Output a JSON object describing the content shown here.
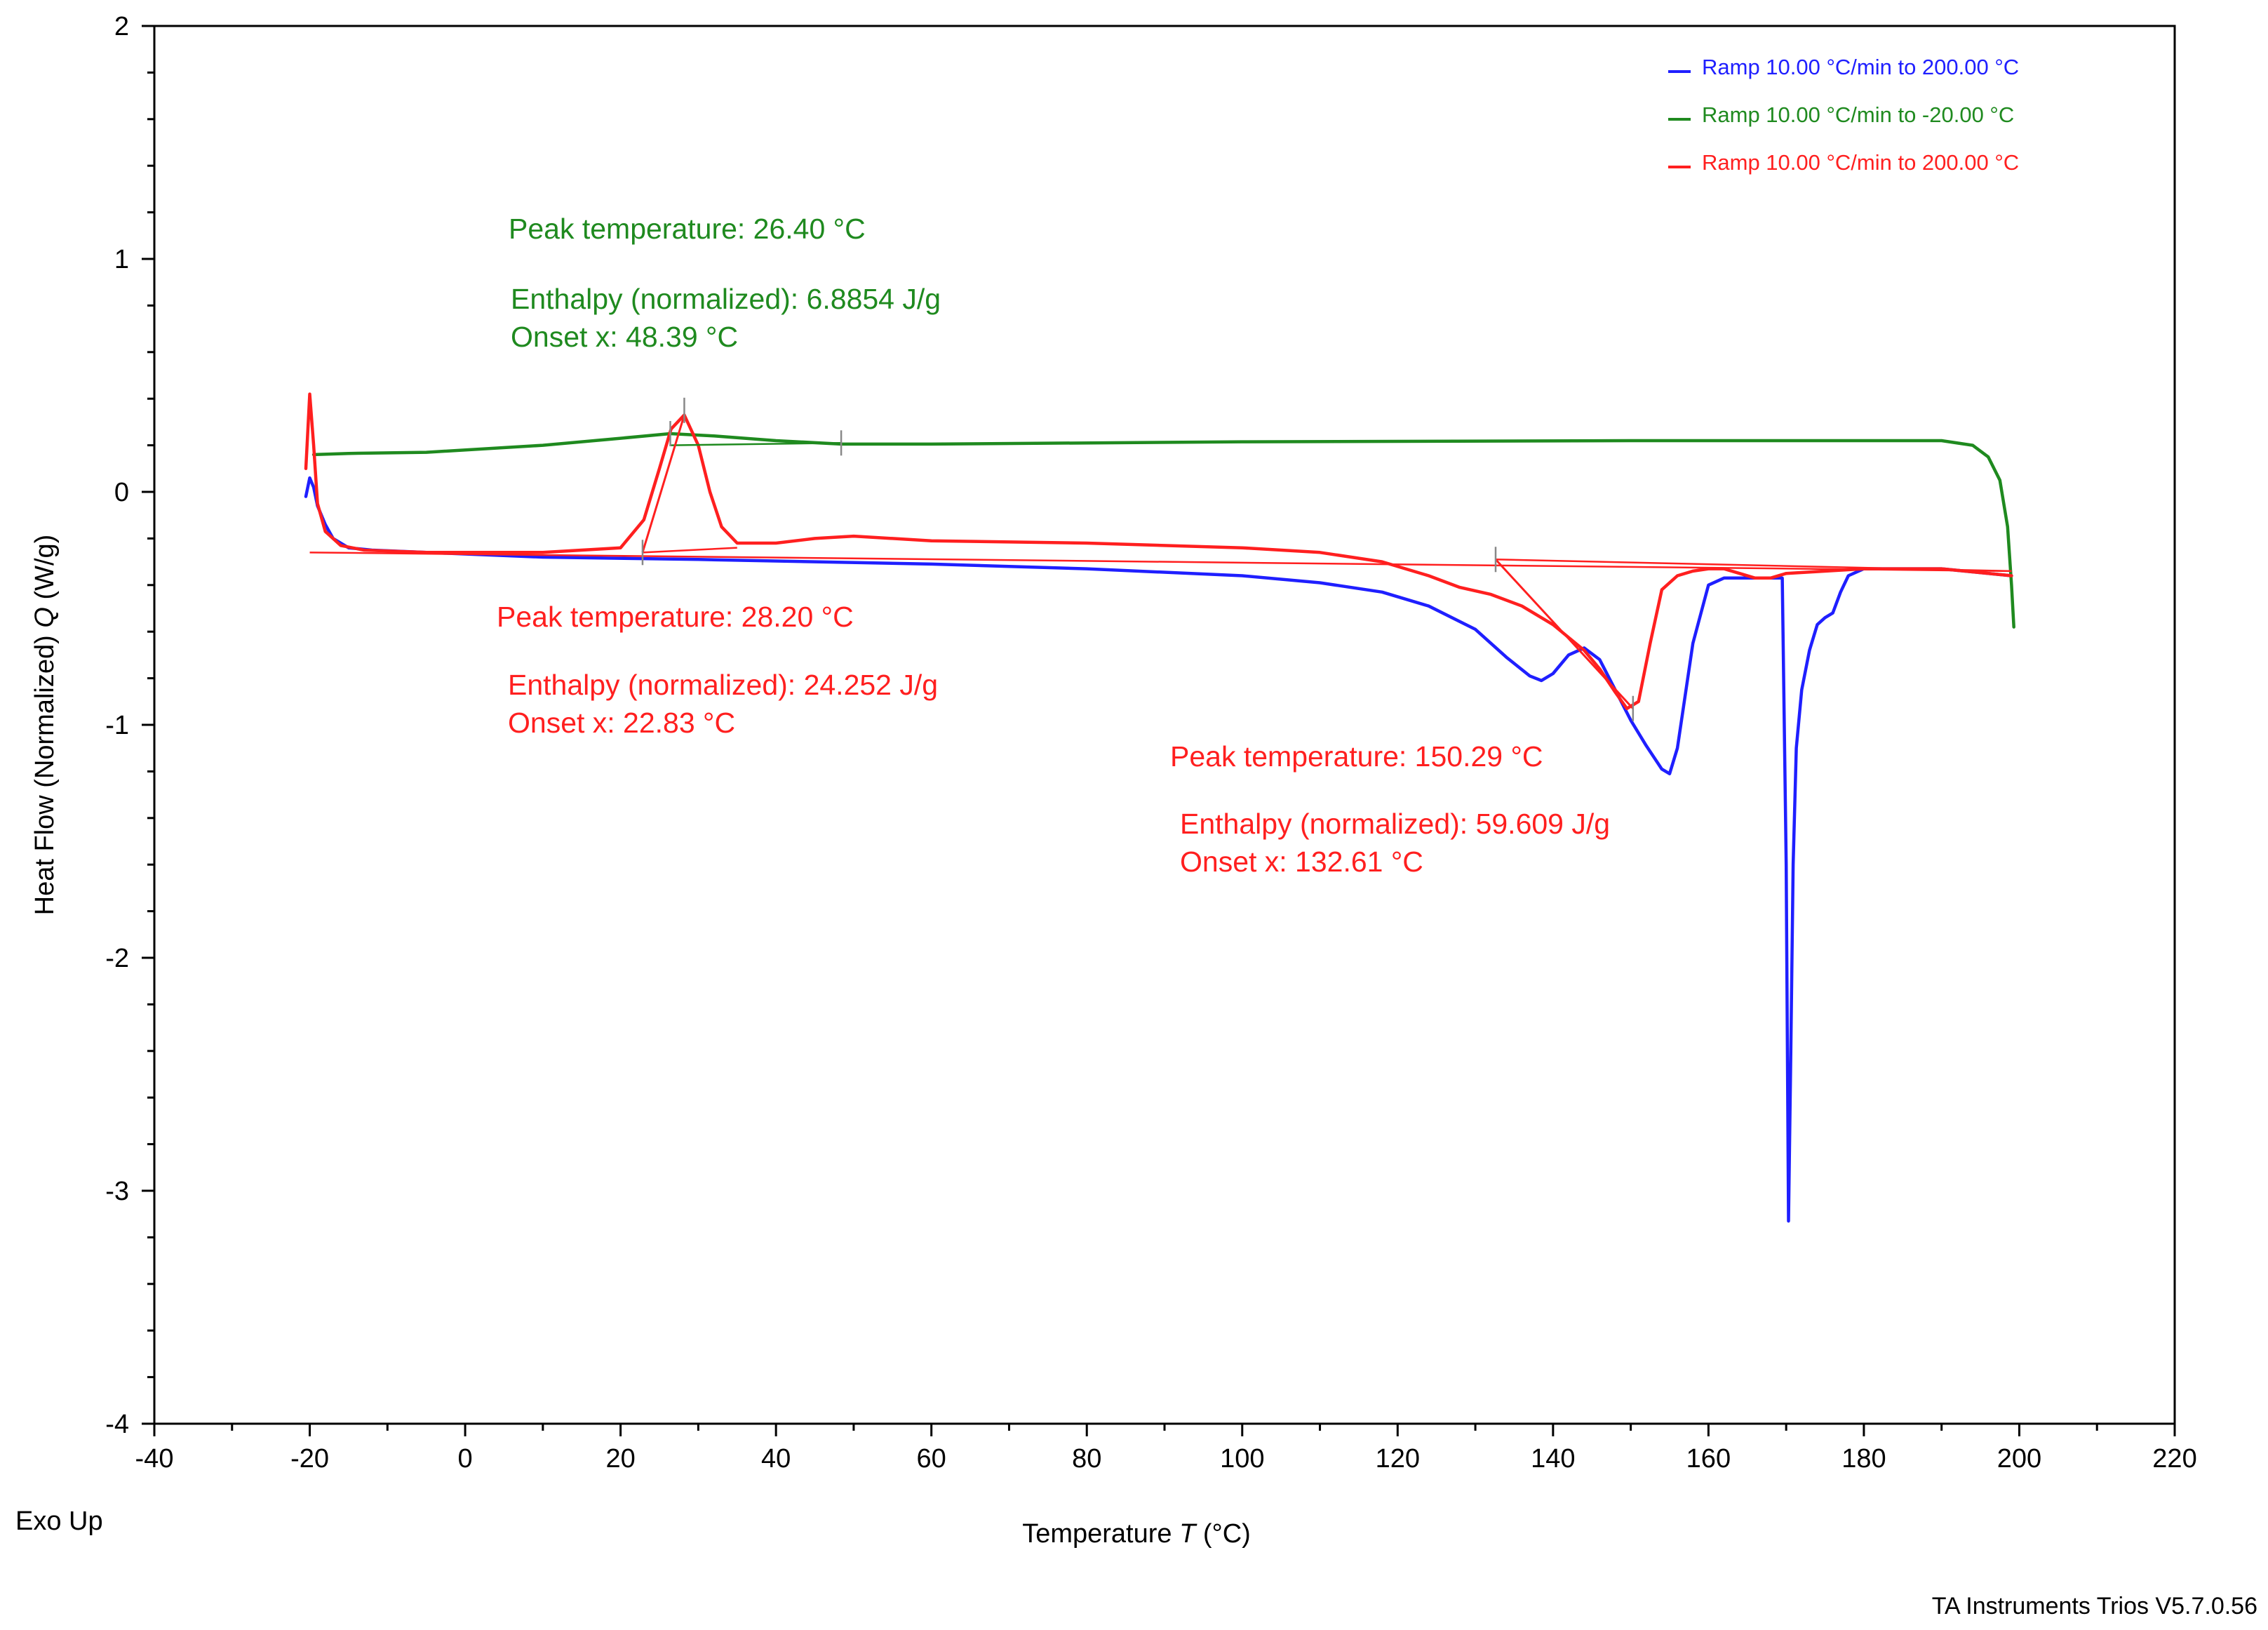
{
  "chart_data": {
    "type": "line",
    "xlabel": "Temperature",
    "xlabel_symbol": "T",
    "xlabel_unit": "(°C)",
    "ylabel": "Heat Flow (Normalized)",
    "ylabel_symbol": "Q",
    "ylabel_unit": "(W/g)",
    "xlim": [
      -40,
      220
    ],
    "ylim": [
      -4,
      2
    ],
    "xticks": [
      -40,
      -20,
      0,
      20,
      40,
      60,
      80,
      100,
      120,
      140,
      160,
      180,
      200,
      220
    ],
    "yticks": [
      -4,
      -3,
      -2,
      -1,
      0,
      1,
      2
    ],
    "xtick_labels": [
      "-40",
      "-20",
      "0",
      "20",
      "40",
      "60",
      "80",
      "100",
      "120",
      "140",
      "160",
      "180",
      "200",
      "220"
    ],
    "ytick_labels": [
      "-4",
      "-3",
      "-2",
      "-1",
      "0",
      "1",
      "2"
    ],
    "exo_label": "Exo Up",
    "footer": "TA Instruments Trios V5.7.0.56",
    "legend_position": "top-right",
    "series": [
      {
        "name": "Ramp 10.00 °C/min to 200.00 °C",
        "color": "#1f1fff",
        "x": [
          -20.5,
          -20,
          -19.5,
          -19,
          -18,
          -17,
          -15,
          -12,
          -5,
          10,
          30,
          60,
          80,
          100,
          110,
          118,
          124,
          130,
          134,
          137,
          138.5,
          140,
          142,
          144,
          146,
          148,
          150,
          152,
          154,
          155,
          156,
          158,
          160,
          162,
          164,
          166,
          168,
          169.5,
          170,
          170.3,
          170.6,
          170.9,
          171.3,
          172,
          173,
          174,
          175,
          176,
          177,
          178,
          180,
          185,
          190,
          199
        ],
        "y": [
          -0.02,
          0.06,
          0.02,
          -0.06,
          -0.14,
          -0.2,
          -0.24,
          -0.25,
          -0.26,
          -0.28,
          -0.29,
          -0.31,
          -0.33,
          -0.36,
          -0.39,
          -0.43,
          -0.49,
          -0.59,
          -0.71,
          -0.79,
          -0.81,
          -0.78,
          -0.7,
          -0.67,
          -0.72,
          -0.85,
          -0.98,
          -1.09,
          -1.19,
          -1.21,
          -1.1,
          -0.65,
          -0.4,
          -0.37,
          -0.37,
          -0.37,
          -0.37,
          -0.37,
          -1.6,
          -3.13,
          -2.4,
          -1.6,
          -1.1,
          -0.85,
          -0.68,
          -0.57,
          -0.54,
          -0.52,
          -0.43,
          -0.36,
          -0.33,
          -0.33,
          -0.33,
          -0.36
        ]
      },
      {
        "name": "Ramp 10.00 °C/min to -20.00 °C",
        "color": "#1f8a1f",
        "x": [
          -19.5,
          -15,
          -5,
          10,
          20,
          26.4,
          32,
          40,
          48.4,
          60,
          100,
          150,
          190,
          194,
          196,
          197.5,
          198.5,
          199,
          199.3
        ],
        "y": [
          0.16,
          0.165,
          0.17,
          0.2,
          0.23,
          0.25,
          0.24,
          0.22,
          0.205,
          0.205,
          0.215,
          0.22,
          0.22,
          0.2,
          0.15,
          0.05,
          -0.15,
          -0.4,
          -0.58
        ]
      },
      {
        "name": "Ramp 10.00 °C/min to 200.00 °C",
        "color": "#ff1f1f",
        "x": [
          -20.5,
          -20,
          -19.5,
          -19,
          -18,
          -16,
          -13,
          -5,
          10,
          20,
          23,
          25,
          26.5,
          28.2,
          30,
          31.5,
          33,
          35,
          40,
          45,
          50,
          55,
          60,
          80,
          100,
          110,
          118,
          124,
          128,
          132,
          136,
          140,
          144,
          146,
          148,
          149.5,
          151,
          152.5,
          154,
          156,
          158,
          160,
          162,
          164,
          166,
          168,
          170,
          180,
          190,
          199
        ],
        "y": [
          0.1,
          0.42,
          0.2,
          -0.05,
          -0.17,
          -0.23,
          -0.25,
          -0.26,
          -0.26,
          -0.24,
          -0.12,
          0.1,
          0.27,
          0.33,
          0.2,
          0.0,
          -0.15,
          -0.22,
          -0.22,
          -0.2,
          -0.19,
          -0.2,
          -0.21,
          -0.22,
          -0.24,
          -0.26,
          -0.3,
          -0.36,
          -0.41,
          -0.44,
          -0.49,
          -0.57,
          -0.68,
          -0.76,
          -0.86,
          -0.93,
          -0.9,
          -0.65,
          -0.42,
          -0.36,
          -0.34,
          -0.33,
          -0.33,
          -0.35,
          -0.37,
          -0.37,
          -0.35,
          -0.33,
          -0.33,
          -0.36
        ]
      }
    ],
    "integration_baselines": [
      {
        "color": "#1f8a1f",
        "x": [
          26.4,
          48.39
        ],
        "y": [
          0.2,
          0.21
        ]
      },
      {
        "color": "#ff1f1f",
        "x": [
          22.83,
          35
        ],
        "y": [
          -0.26,
          -0.24
        ]
      },
      {
        "color": "#ff1f1f",
        "x": [
          132.61,
          199
        ],
        "y": [
          -0.29,
          -0.34
        ]
      },
      {
        "color": "#ff1f1f",
        "x": [
          -20,
          199
        ],
        "y": [
          -0.26,
          -0.34
        ]
      }
    ],
    "onset_tangents": [
      {
        "color": "#ff1f1f",
        "x": [
          22.83,
          28.2
        ],
        "y": [
          -0.26,
          0.33
        ]
      },
      {
        "color": "#ff1f1f",
        "x": [
          132.61,
          150.29
        ],
        "y": [
          -0.29,
          -0.93
        ]
      }
    ],
    "markers": [
      {
        "color": "#888888",
        "x": 28.2,
        "y": 0.35
      },
      {
        "color": "#888888",
        "x": 26.4,
        "y": 0.25
      },
      {
        "color": "#888888",
        "x": 48.39,
        "y": 0.21
      },
      {
        "color": "#888888",
        "x": 22.83,
        "y": -0.26
      },
      {
        "color": "#888888",
        "x": 132.61,
        "y": -0.29
      },
      {
        "color": "#888888",
        "x": 150.29,
        "y": -0.93
      }
    ],
    "annotations": [
      {
        "color": "#1f8a1f",
        "peak": "Peak temperature: 26.40 °C",
        "enthalpy": "Enthalpy (normalized): 6.8854 J/g",
        "onset": "Onset x: 48.39 °C"
      },
      {
        "color": "#ff1f1f",
        "peak": "Peak temperature: 28.20 °C",
        "enthalpy": "Enthalpy (normalized): 24.252 J/g",
        "onset": "Onset x: 22.83 °C"
      },
      {
        "color": "#ff1f1f",
        "peak": "Peak temperature: 150.29 °C",
        "enthalpy": "Enthalpy (normalized): 59.609 J/g",
        "onset": "Onset x: 132.61 °C"
      }
    ]
  }
}
